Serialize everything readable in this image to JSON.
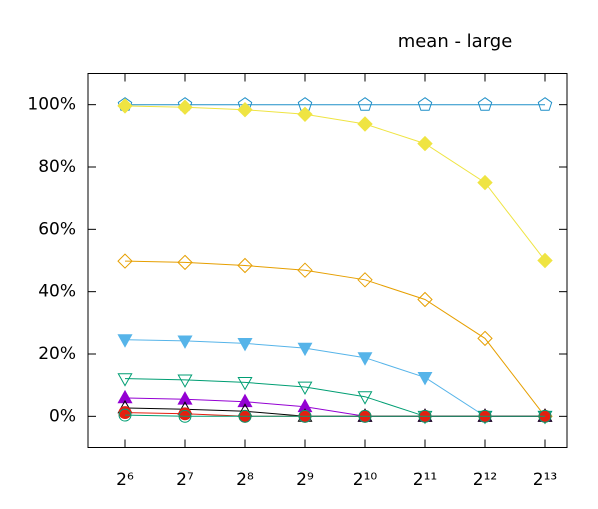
{
  "chart_data": {
    "type": "line",
    "title": "mean - large",
    "categories": [
      "2⁶",
      "2⁷",
      "2⁸",
      "2⁹",
      "2¹⁰",
      "2¹¹",
      "2¹²",
      "2¹³"
    ],
    "ylim": [
      -10,
      110
    ],
    "yticks": [
      {
        "value": 0,
        "label": "0%"
      },
      {
        "value": 20,
        "label": "20%"
      },
      {
        "value": 40,
        "label": "40%"
      },
      {
        "value": 60,
        "label": "60%"
      },
      {
        "value": 80,
        "label": "80%"
      },
      {
        "value": 100,
        "label": "100%"
      }
    ],
    "series": [
      {
        "color": "#1f8fc8",
        "marker": "pentagon",
        "filled": false,
        "values": [
          100,
          100,
          100,
          100,
          100,
          100,
          100,
          100
        ]
      },
      {
        "color": "#efe442",
        "marker": "diamond",
        "filled": true,
        "values": [
          99.6,
          99.2,
          98.4,
          96.9,
          93.8,
          87.5,
          75,
          50
        ]
      },
      {
        "color": "#e69f00",
        "marker": "diamond",
        "filled": false,
        "values": [
          49.8,
          49.4,
          48.4,
          46.9,
          43.8,
          37.5,
          25,
          0
        ]
      },
      {
        "color": "#56b4e9",
        "marker": "tri-down",
        "filled": true,
        "values": [
          24.6,
          24.2,
          23.4,
          21.9,
          18.8,
          12.5,
          0,
          0
        ]
      },
      {
        "color": "#009e73",
        "marker": "tri-down",
        "filled": false,
        "values": [
          12.1,
          11.7,
          10.9,
          9.4,
          6.3,
          0,
          0,
          0
        ]
      },
      {
        "color": "#9400d3",
        "marker": "tri-up",
        "filled": true,
        "values": [
          5.9,
          5.5,
          4.7,
          3.1,
          0,
          0,
          0,
          0
        ]
      },
      {
        "color": "#000000",
        "marker": "tri-up",
        "filled": false,
        "values": [
          2.7,
          2.3,
          1.6,
          0,
          0,
          0,
          0,
          0
        ]
      },
      {
        "color": "#e51e10",
        "marker": "circle",
        "filled": true,
        "values": [
          1.2,
          0.8,
          0,
          0,
          0,
          0,
          0,
          0
        ]
      },
      {
        "color": "#009e73",
        "marker": "circle",
        "filled": false,
        "values": [
          0.4,
          0,
          0,
          0,
          0,
          0,
          0,
          0
        ]
      }
    ]
  }
}
